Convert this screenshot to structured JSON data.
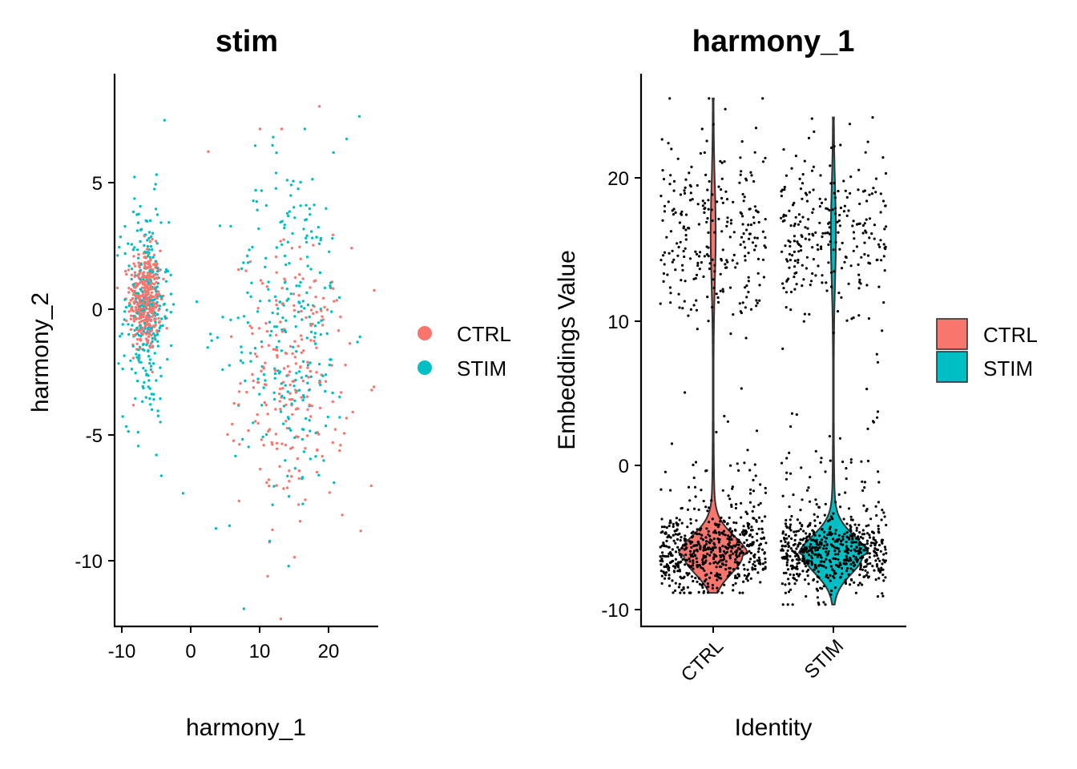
{
  "chart_data": [
    {
      "type": "scatter",
      "title": "stim",
      "xlabel": "harmony_1",
      "ylabel": "harmony_2",
      "xlim": [
        -10.7,
        27
      ],
      "ylim": [
        -12.4,
        9.6
      ],
      "xticks": [
        -10,
        0,
        10,
        20
      ],
      "yticks": [
        5,
        0,
        -5,
        -10
      ],
      "tick_labels_x": [
        "-10",
        "0",
        "10",
        "20"
      ],
      "tick_labels_y": [
        "5",
        "0",
        "-5",
        "-10"
      ],
      "legend": {
        "position": "right",
        "entries": [
          {
            "label": "CTRL",
            "color": "#F8766D"
          },
          {
            "label": "STIM",
            "color": "#00BFC4"
          }
        ]
      },
      "series": [
        {
          "name": "CTRL",
          "color": "#F8766D",
          "clusters": [
            {
              "center": [
                -6.3,
                0.6
              ],
              "spread": [
                1.1,
                1.0
              ],
              "count": 420
            },
            {
              "center": [
                15,
                -2.5
              ],
              "spread": [
                3.8,
                2.6
              ],
              "count": 230
            }
          ],
          "outliers": [
            [
              18.6,
              8.3
            ],
            [
              13.2,
              7.4
            ],
            [
              11.2,
              -10.4
            ],
            [
              24.5,
              -8.6
            ],
            [
              26,
              -6.8
            ],
            [
              10.1,
              7.4
            ],
            [
              2.7,
              6.5
            ]
          ]
        },
        {
          "name": "STIM",
          "color": "#00BFC4",
          "clusters": [
            {
              "center": [
                -6.2,
                0.2
              ],
              "spread": [
                1.6,
                2.2
              ],
              "count": 280
            },
            {
              "center": [
                14.5,
                -0.3
              ],
              "spread": [
                4.3,
                3.4
              ],
              "count": 260
            }
          ],
          "outliers": [
            [
              24.3,
              7.9
            ],
            [
              7.8,
              -11.7
            ],
            [
              11.5,
              -9.0
            ],
            [
              14.2,
              -10.0
            ],
            [
              3.8,
              -8.5
            ],
            [
              -0.9,
              -7.1
            ],
            [
              22.5,
              7.0
            ],
            [
              16.5,
              7.4
            ]
          ]
        }
      ]
    },
    {
      "type": "violin",
      "title": "harmony_1",
      "xlabel": "Identity",
      "ylabel": "Embeddings Value",
      "categories": [
        "CTRL",
        "STIM"
      ],
      "ylim": [
        -10.9,
        27
      ],
      "yticks": [
        20,
        10,
        0,
        -10
      ],
      "tick_labels_y": [
        "20",
        "10",
        "0",
        "-10"
      ],
      "colors": [
        "#F8766D",
        "#00BFC4"
      ],
      "points_color": "#000000",
      "legend": {
        "position": "right",
        "entries": [
          {
            "label": "CTRL",
            "color": "#F8766D"
          },
          {
            "label": "STIM",
            "color": "#00BFC4"
          }
        ]
      },
      "groups": [
        {
          "name": "CTRL",
          "min": -8.6,
          "max": 25.3,
          "low_mode": {
            "center": -6.0,
            "spread": 1.3,
            "count": 600
          },
          "high_mode": {
            "center": 16.0,
            "spread": 3.3,
            "count": 260
          }
        },
        {
          "name": "STIM",
          "min": -9.4,
          "max": 24.0,
          "low_mode": {
            "center": -6.0,
            "spread": 1.3,
            "count": 620
          },
          "high_mode": {
            "center": 16.0,
            "spread": 3.3,
            "count": 260
          }
        }
      ]
    }
  ]
}
